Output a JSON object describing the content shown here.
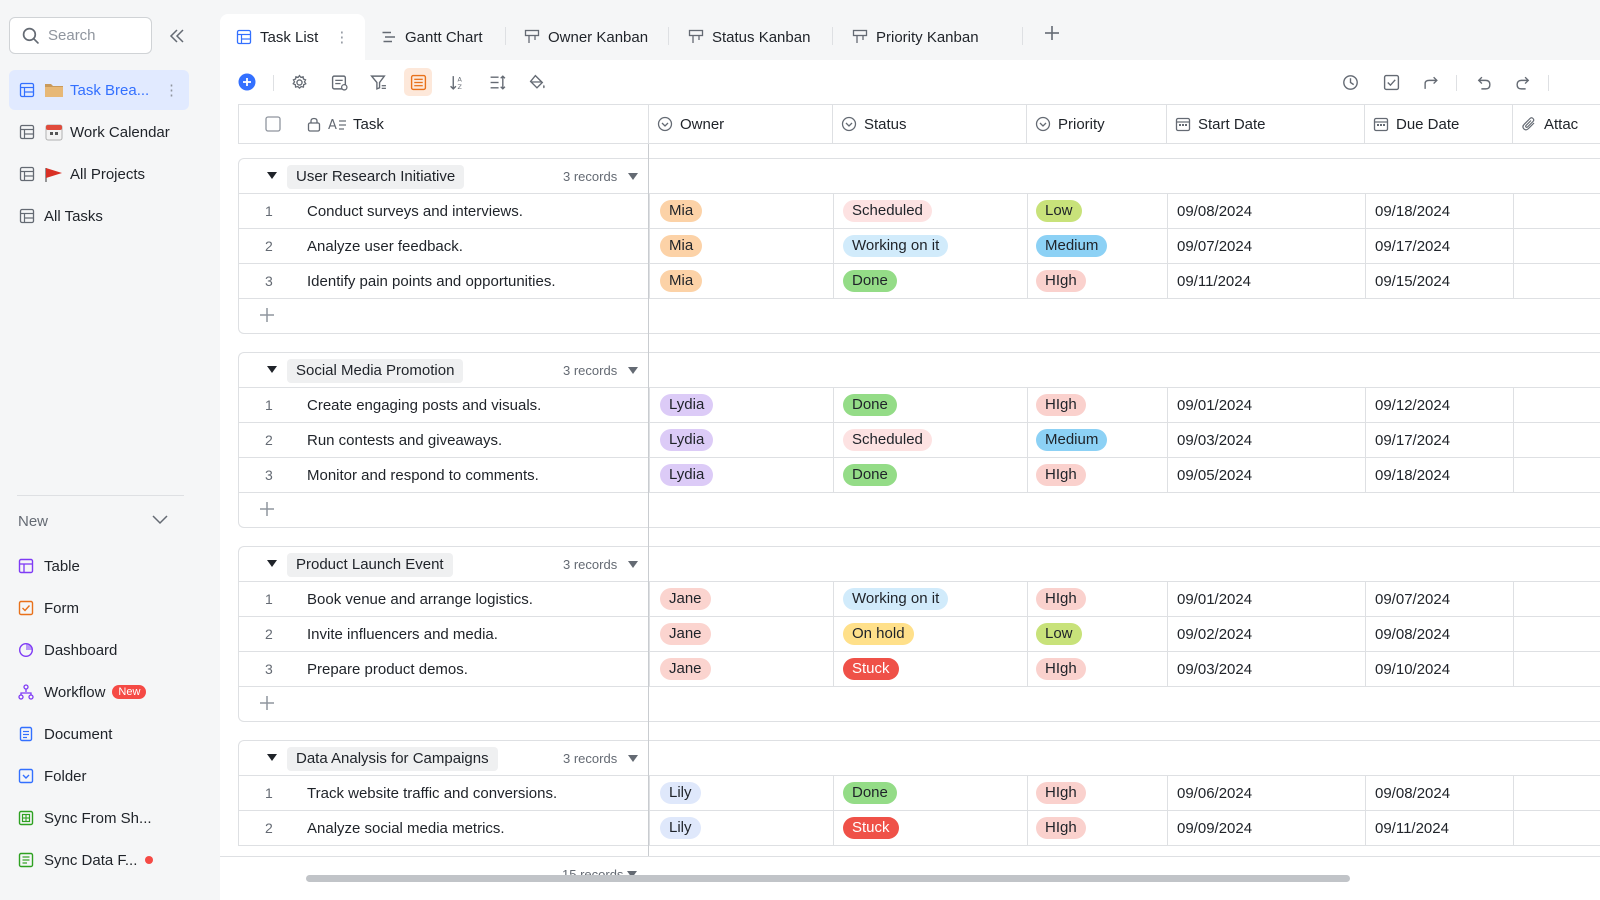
{
  "sidebar": {
    "search_placeholder": "Search",
    "items": [
      {
        "label": "Task Brea...",
        "emoji": "folder-emoji",
        "active": true
      },
      {
        "label": "Work Calendar",
        "emoji": "calendar-emoji"
      },
      {
        "label": "All Projects",
        "emoji": "red-flag-emoji"
      },
      {
        "label": "All Tasks"
      }
    ],
    "new_label": "New",
    "create": [
      {
        "label": "Table",
        "icon": "table-icon",
        "color": "#7f3bf5"
      },
      {
        "label": "Form",
        "icon": "form-icon",
        "color": "#e8711b"
      },
      {
        "label": "Dashboard",
        "icon": "dashboard-icon",
        "color": "#7f3bf5"
      },
      {
        "label": "Workflow",
        "icon": "workflow-icon",
        "color": "#7f3bf5",
        "badge": "New"
      },
      {
        "label": "Document",
        "icon": "document-icon",
        "color": "#3370ff"
      },
      {
        "label": "Folder",
        "icon": "folder-icon",
        "color": "#3370ff"
      },
      {
        "label": "Sync From Sh...",
        "icon": "sheet-sync-icon",
        "color": "#2ea121"
      },
      {
        "label": "Sync Data F...",
        "icon": "data-sync-icon",
        "color": "#2ea121",
        "dot": true
      }
    ]
  },
  "tabs": [
    {
      "label": "Task List",
      "icon": "grid-icon",
      "active": true
    },
    {
      "label": "Gantt Chart",
      "icon": "gantt-icon"
    },
    {
      "label": "Owner Kanban",
      "icon": "kanban-icon"
    },
    {
      "label": "Status Kanban",
      "icon": "kanban-icon"
    },
    {
      "label": "Priority Kanban",
      "icon": "kanban-icon"
    }
  ],
  "columns": {
    "task": "Task",
    "owner": "Owner",
    "status": "Status",
    "priority": "Priority",
    "start": "Start Date",
    "due": "Due Date",
    "attachment": "Attac"
  },
  "colors": {
    "accent": "#3370ff",
    "owner": {
      "Mia": "#fcd2a7",
      "Lydia": "#dccbf7",
      "Jane": "#fbd4cf",
      "Lily": "#dfe8fb"
    },
    "status": {
      "Scheduled": {
        "bg": "#fde2e2",
        "fg": "#1f2329"
      },
      "Working on it": {
        "bg": "#d1ebfb",
        "fg": "#1f2329"
      },
      "Done": {
        "bg": "#94dc87",
        "fg": "#1f2329"
      },
      "On hold": {
        "bg": "#ffe08a",
        "fg": "#1f2329"
      },
      "Stuck": {
        "bg": "#ef5148",
        "fg": "#ffffff"
      }
    },
    "priority": {
      "Low": {
        "bg": "#c8e27a",
        "fg": "#1f2329"
      },
      "Medium": {
        "bg": "#8cd1f5",
        "fg": "#1f2329"
      },
      "HIgh": {
        "bg": "#fad1cd",
        "fg": "#1f2329"
      }
    }
  },
  "groups": [
    {
      "title": "User Research Initiative",
      "count": "3 records",
      "rows": [
        {
          "n": "1",
          "task": "Conduct surveys and interviews.",
          "owner": "Mia",
          "status": "Scheduled",
          "priority": "Low",
          "start": "09/08/2024",
          "due": "09/18/2024"
        },
        {
          "n": "2",
          "task": "Analyze user feedback.",
          "owner": "Mia",
          "status": "Working on it",
          "priority": "Medium",
          "start": "09/07/2024",
          "due": "09/17/2024"
        },
        {
          "n": "3",
          "task": "Identify pain points and opportunities.",
          "owner": "Mia",
          "status": "Done",
          "priority": "HIgh",
          "start": "09/11/2024",
          "due": "09/15/2024"
        }
      ]
    },
    {
      "title": "Social Media Promotion",
      "count": "3 records",
      "rows": [
        {
          "n": "1",
          "task": "Create engaging posts and visuals.",
          "owner": "Lydia",
          "status": "Done",
          "priority": "HIgh",
          "start": "09/01/2024",
          "due": "09/12/2024"
        },
        {
          "n": "2",
          "task": "Run contests and giveaways.",
          "owner": "Lydia",
          "status": "Scheduled",
          "priority": "Medium",
          "start": "09/03/2024",
          "due": "09/17/2024"
        },
        {
          "n": "3",
          "task": "Monitor and respond to comments.",
          "owner": "Lydia",
          "status": "Done",
          "priority": "HIgh",
          "start": "09/05/2024",
          "due": "09/18/2024"
        }
      ]
    },
    {
      "title": "Product Launch Event",
      "count": "3 records",
      "rows": [
        {
          "n": "1",
          "task": "Book venue and arrange logistics.",
          "owner": "Jane",
          "status": "Working on it",
          "priority": "HIgh",
          "start": "09/01/2024",
          "due": "09/07/2024"
        },
        {
          "n": "2",
          "task": "Invite influencers and media.",
          "owner": "Jane",
          "status": "On hold",
          "priority": "Low",
          "start": "09/02/2024",
          "due": "09/08/2024"
        },
        {
          "n": "3",
          "task": "Prepare product demos.",
          "owner": "Jane",
          "status": "Stuck",
          "priority": "HIgh",
          "start": "09/03/2024",
          "due": "09/10/2024"
        }
      ]
    },
    {
      "title": "Data Analysis for Campaigns",
      "count": "3 records",
      "rows": [
        {
          "n": "1",
          "task": "Track website traffic and conversions.",
          "owner": "Lily",
          "status": "Done",
          "priority": "HIgh",
          "start": "09/06/2024",
          "due": "09/08/2024"
        },
        {
          "n": "2",
          "task": "Analyze social media metrics.",
          "owner": "Lily",
          "status": "Stuck",
          "priority": "HIgh",
          "start": "09/09/2024",
          "due": "09/11/2024"
        }
      ]
    }
  ],
  "footer": {
    "count": "15 records"
  }
}
